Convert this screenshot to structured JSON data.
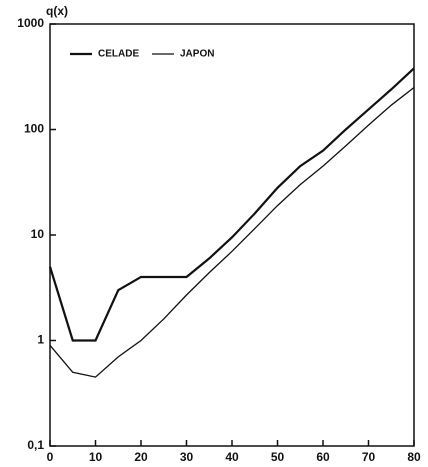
{
  "chart_data": {
    "type": "line",
    "ylabel": "q(x)",
    "log_y": true,
    "x": [
      0,
      5,
      10,
      15,
      20,
      25,
      30,
      35,
      40,
      45,
      50,
      55,
      60,
      65,
      70,
      75,
      80
    ],
    "series": [
      {
        "name": "CELADE",
        "color": "#111111",
        "width": 2.2,
        "values": [
          5,
          1.0,
          1.0,
          3.0,
          4.0,
          4.0,
          4.0,
          6,
          9.5,
          16,
          28,
          45,
          63,
          100,
          155,
          240,
          380
        ]
      },
      {
        "name": "JAPON",
        "color": "#111111",
        "width": 1.3,
        "values": [
          0.9,
          0.5,
          0.45,
          0.7,
          1.0,
          1.6,
          2.7,
          4.4,
          7,
          11.5,
          19,
          30,
          45,
          70,
          110,
          170,
          250
        ]
      }
    ],
    "xlim": [
      0,
      80
    ],
    "xticks": [
      0,
      10,
      20,
      30,
      40,
      50,
      60,
      70,
      80
    ],
    "ylim": [
      0.1,
      1000
    ],
    "yticks": [
      {
        "value": 0.1,
        "label": "0,1"
      },
      1,
      10,
      100,
      1000
    ],
    "legend": "top-left"
  }
}
